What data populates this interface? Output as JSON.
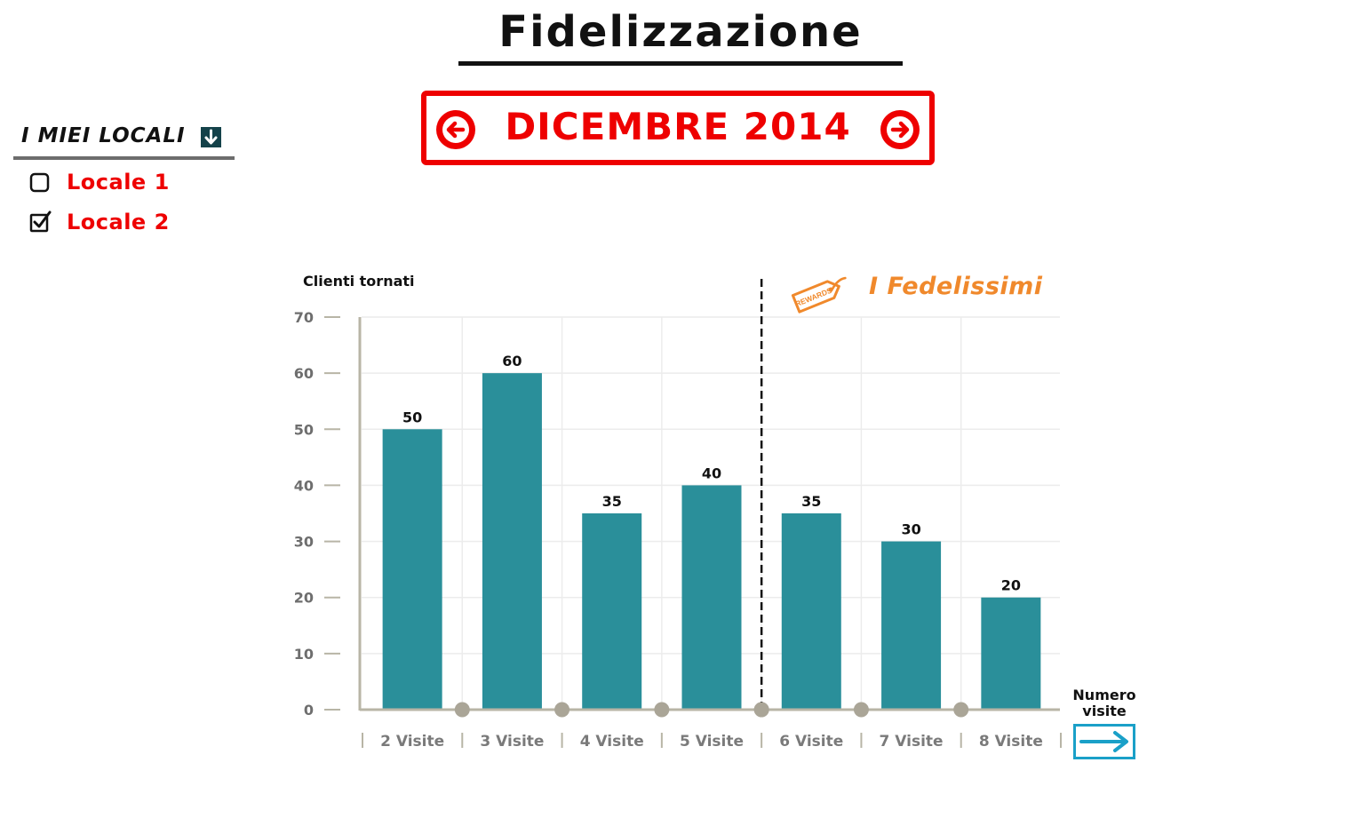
{
  "header": {
    "title": "Fidelizzazione",
    "period_label": "DICEMBRE 2014"
  },
  "sidebar": {
    "title": "I MIEI LOCALI",
    "items": [
      {
        "label": "Locale 1",
        "checked": false
      },
      {
        "label": "Locale 2",
        "checked": true
      }
    ]
  },
  "colors": {
    "accent": "#ee0000",
    "bar": "#2a8f9a",
    "highlight": "#f0892c",
    "arrow": "#1aa0c8"
  },
  "icons": {
    "prev": "arrow-left-icon",
    "next": "arrow-right-icon",
    "toggle": "arrow-down-icon",
    "tag": "rewards-tag-icon",
    "axis_next": "long-arrow-right-icon"
  },
  "chart_data": {
    "type": "bar",
    "categories": [
      "2 Visite",
      "3 Visite",
      "4 Visite",
      "5 Visite",
      "6 Visite",
      "7 Visite",
      "8 Visite"
    ],
    "values": [
      50,
      60,
      35,
      40,
      35,
      30,
      20
    ],
    "ylabel": "Clienti tornati",
    "xlabel": "Numero visite",
    "ylim": [
      0,
      70
    ],
    "yticks": [
      0,
      10,
      20,
      30,
      40,
      50,
      60,
      70
    ],
    "grid": true,
    "annotation": {
      "label": "I Fedelissimi",
      "tag_text": "REWARDS",
      "starts_after_category": "5 Visite"
    }
  }
}
